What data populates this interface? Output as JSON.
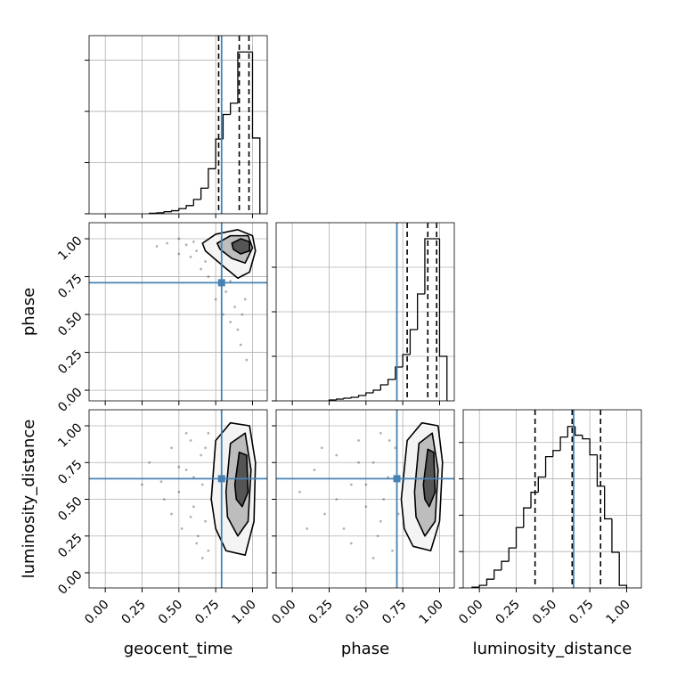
{
  "chart_data": [
    {
      "type": "histogram",
      "color": "#000000",
      "truth_color": "#4682b4",
      "xlim": [
        -0.11,
        1.1
      ],
      "ylim": [
        0,
        1.74
      ],
      "xticks": [
        0,
        0.25,
        0.5,
        0.75,
        1
      ],
      "yticks": [
        0,
        0.5,
        1,
        1.5
      ],
      "xtick_labels": false,
      "ytick_labels": false,
      "grid": true,
      "bins": [
        0.3,
        0.35,
        0.4,
        0.45,
        0.5,
        0.55,
        0.6,
        0.65,
        0.7,
        0.75,
        0.8,
        0.85,
        0.9,
        0.95,
        1.0,
        1.05
      ],
      "counts": [
        0.005,
        0.01,
        0.02,
        0.03,
        0.05,
        0.08,
        0.14,
        0.25,
        0.44,
        0.73,
        0.97,
        1.08,
        1.58,
        1.58,
        0.74
      ],
      "quantiles": [
        0.77,
        0.91,
        0.976
      ],
      "truth": 0.79
    },
    {
      "type": "scatter",
      "ylabel": "phase",
      "color": "#000000",
      "truth_color": "#4682b4",
      "xlim": [
        -0.11,
        1.1
      ],
      "ylim": [
        -0.07,
        1.106
      ],
      "xticks": [
        0,
        0.25,
        0.5,
        0.75,
        1
      ],
      "yticks": [
        {
          "value": 0,
          "label": "0.00"
        },
        {
          "value": 0.25,
          "label": "0.25"
        },
        {
          "value": 0.5,
          "label": "0.50"
        },
        {
          "value": 0.75,
          "label": "0.75"
        },
        {
          "value": 1,
          "label": "1.00"
        }
      ],
      "xtick_labels": false,
      "ytick_labels": true,
      "grid": true,
      "x": [
        0.35,
        0.42,
        0.5,
        0.55,
        0.58,
        0.62,
        0.65,
        0.68,
        0.7,
        0.72,
        0.75,
        0.78,
        0.8,
        0.82,
        0.85,
        0.88,
        0.9,
        0.92,
        0.95,
        0.6,
        0.7,
        0.85,
        0.93,
        0.96,
        0.5
      ],
      "y": [
        0.95,
        0.97,
        0.9,
        0.96,
        0.88,
        0.92,
        0.8,
        0.85,
        0.75,
        0.9,
        0.6,
        0.7,
        0.5,
        0.65,
        0.45,
        0.55,
        0.4,
        0.3,
        0.6,
        0.98,
        0.95,
        0.72,
        0.5,
        0.2,
        1.0
      ],
      "contours": [
        {
          "x": [
            0.66,
            0.75,
            0.9,
            1.0,
            1.02,
            0.98,
            0.9,
            0.8,
            0.68
          ],
          "y": [
            0.97,
            1.03,
            1.06,
            1.02,
            0.92,
            0.78,
            0.74,
            0.82,
            0.92
          ]
        },
        {
          "x": [
            0.76,
            0.85,
            0.97,
            1.0,
            0.95,
            0.86,
            0.78
          ],
          "y": [
            0.97,
            1.02,
            1.02,
            0.94,
            0.84,
            0.87,
            0.93
          ]
        },
        {
          "x": [
            0.86,
            0.92,
            0.98,
            0.98,
            0.92,
            0.87
          ],
          "y": [
            0.97,
            1.0,
            0.98,
            0.92,
            0.9,
            0.93
          ]
        }
      ],
      "truth_x": 0.79,
      "truth_y": 0.71
    },
    {
      "type": "histogram",
      "color": "#000000",
      "truth_color": "#4682b4",
      "xlim": [
        -0.11,
        1.1
      ],
      "ylim": [
        0,
        4
      ],
      "xticks": [
        0,
        0.25,
        0.5,
        0.75,
        1
      ],
      "yticks": [
        0,
        1,
        2,
        3
      ],
      "xtick_labels": false,
      "ytick_labels": false,
      "grid": true,
      "bins": [
        0.25,
        0.3,
        0.35,
        0.4,
        0.45,
        0.5,
        0.55,
        0.6,
        0.65,
        0.7,
        0.75,
        0.8,
        0.85,
        0.9,
        0.95,
        1.0,
        1.05
      ],
      "counts": [
        0.02,
        0.04,
        0.06,
        0.08,
        0.12,
        0.18,
        0.24,
        0.36,
        0.48,
        0.76,
        1.04,
        1.6,
        2.4,
        3.64,
        3.64,
        1.0
      ],
      "quantiles": [
        0.78,
        0.92,
        0.98
      ],
      "truth": 0.71
    },
    {
      "type": "scatter",
      "xlabel": "geocent_time",
      "ylabel": "luminosity_distance",
      "color": "#000000",
      "truth_color": "#4682b4",
      "xlim": [
        -0.11,
        1.1
      ],
      "ylim": [
        -0.103,
        1.109
      ],
      "xticks": [
        {
          "value": 0,
          "label": "0.00"
        },
        {
          "value": 0.25,
          "label": "0.25"
        },
        {
          "value": 0.5,
          "label": "0.50"
        },
        {
          "value": 0.75,
          "label": "0.75"
        },
        {
          "value": 1,
          "label": "1.00"
        }
      ],
      "yticks": [
        {
          "value": 0,
          "label": "0.00"
        },
        {
          "value": 0.25,
          "label": "0.25"
        },
        {
          "value": 0.5,
          "label": "0.50"
        },
        {
          "value": 0.75,
          "label": "0.75"
        },
        {
          "value": 1,
          "label": "1.00"
        }
      ],
      "xtick_labels": true,
      "ytick_labels": true,
      "grid": true,
      "x": [
        0.3,
        0.38,
        0.45,
        0.5,
        0.52,
        0.55,
        0.58,
        0.6,
        0.62,
        0.65,
        0.66,
        0.68,
        0.7,
        0.7,
        0.72,
        0.45,
        0.55,
        0.6,
        0.63,
        0.4,
        0.68,
        0.5,
        0.58,
        0.66,
        0.25
      ],
      "y": [
        0.75,
        0.62,
        0.85,
        0.55,
        0.3,
        0.7,
        0.9,
        0.45,
        0.2,
        0.8,
        0.6,
        0.35,
        0.95,
        0.15,
        0.5,
        0.4,
        0.95,
        0.65,
        0.25,
        0.5,
        0.85,
        0.72,
        0.38,
        0.1,
        0.6
      ],
      "contours": [
        {
          "x": [
            0.72,
            0.75,
            0.85,
            0.98,
            1.02,
            1.01,
            0.95,
            0.82,
            0.75
          ],
          "y": [
            0.5,
            0.9,
            1.02,
            1.0,
            0.75,
            0.35,
            0.12,
            0.15,
            0.3
          ]
        },
        {
          "x": [
            0.82,
            0.85,
            0.95,
            0.99,
            0.97,
            0.9,
            0.83
          ],
          "y": [
            0.55,
            0.88,
            0.95,
            0.7,
            0.35,
            0.25,
            0.38
          ]
        },
        {
          "x": [
            0.88,
            0.91,
            0.96,
            0.97,
            0.93,
            0.89
          ],
          "y": [
            0.6,
            0.82,
            0.8,
            0.55,
            0.45,
            0.5
          ]
        }
      ],
      "truth_x": 0.79,
      "truth_y": 0.64
    },
    {
      "type": "scatter",
      "xlabel": "phase",
      "color": "#000000",
      "truth_color": "#4682b4",
      "xlim": [
        -0.11,
        1.1
      ],
      "ylim": [
        -0.103,
        1.109
      ],
      "xticks": [
        {
          "value": 0,
          "label": "0.00"
        },
        {
          "value": 0.25,
          "label": "0.25"
        },
        {
          "value": 0.5,
          "label": "0.50"
        },
        {
          "value": 0.75,
          "label": "0.75"
        },
        {
          "value": 1,
          "label": "1.00"
        }
      ],
      "yticks": [
        0,
        0.25,
        0.5,
        0.75,
        1
      ],
      "xtick_labels": true,
      "ytick_labels": false,
      "grid": true,
      "x": [
        0.05,
        0.15,
        0.22,
        0.3,
        0.35,
        0.4,
        0.45,
        0.5,
        0.55,
        0.58,
        0.6,
        0.62,
        0.65,
        0.68,
        0.7,
        0.72,
        0.3,
        0.5,
        0.6,
        0.4,
        0.66,
        0.55,
        0.2,
        0.1,
        0.45
      ],
      "y": [
        0.55,
        0.7,
        0.4,
        0.8,
        0.3,
        0.6,
        0.9,
        0.45,
        0.75,
        0.25,
        0.95,
        0.5,
        0.65,
        0.15,
        0.85,
        0.4,
        0.5,
        0.6,
        0.35,
        0.2,
        0.9,
        0.1,
        0.85,
        0.3,
        0.75
      ],
      "contours": [
        {
          "x": [
            0.74,
            0.78,
            0.88,
            0.99,
            1.02,
            1.0,
            0.94,
            0.82,
            0.76
          ],
          "y": [
            0.5,
            0.9,
            1.02,
            1.0,
            0.75,
            0.35,
            0.15,
            0.18,
            0.3
          ]
        },
        {
          "x": [
            0.83,
            0.86,
            0.95,
            0.99,
            0.97,
            0.9,
            0.84
          ],
          "y": [
            0.55,
            0.88,
            0.95,
            0.7,
            0.35,
            0.25,
            0.38
          ]
        },
        {
          "x": [
            0.89,
            0.92,
            0.96,
            0.97,
            0.93,
            0.9
          ],
          "y": [
            0.6,
            0.84,
            0.82,
            0.55,
            0.45,
            0.5
          ]
        }
      ],
      "truth_x": 0.71,
      "truth_y": 0.64
    },
    {
      "type": "histogram",
      "xlabel": "luminosity_distance",
      "color": "#000000",
      "truth_color": "#4682b4",
      "xlim": [
        -0.11,
        1.1
      ],
      "ylim": [
        0,
        4.9
      ],
      "xticks": [
        {
          "value": 0,
          "label": "0.00"
        },
        {
          "value": 0.25,
          "label": "0.25"
        },
        {
          "value": 0.5,
          "label": "0.50"
        },
        {
          "value": 0.75,
          "label": "0.75"
        },
        {
          "value": 1,
          "label": "1.00"
        }
      ],
      "yticks": [
        0,
        1,
        2,
        3,
        4
      ],
      "xtick_labels": true,
      "ytick_labels": false,
      "grid": true,
      "bins": [
        -0.05,
        0.0,
        0.05,
        0.1,
        0.15,
        0.2,
        0.25,
        0.3,
        0.35,
        0.4,
        0.45,
        0.5,
        0.55,
        0.6,
        0.65,
        0.7,
        0.75,
        0.8,
        0.85,
        0.9,
        0.95,
        1.0
      ],
      "counts": [
        0.02,
        0.07,
        0.24,
        0.49,
        0.73,
        1.1,
        1.66,
        2.2,
        2.63,
        3.05,
        3.61,
        3.78,
        4.15,
        4.44,
        4.2,
        4.1,
        3.66,
        2.8,
        1.9,
        0.98,
        0.07
      ],
      "quantiles": [
        0.378,
        0.63,
        0.823
      ],
      "truth": 0.64
    }
  ]
}
